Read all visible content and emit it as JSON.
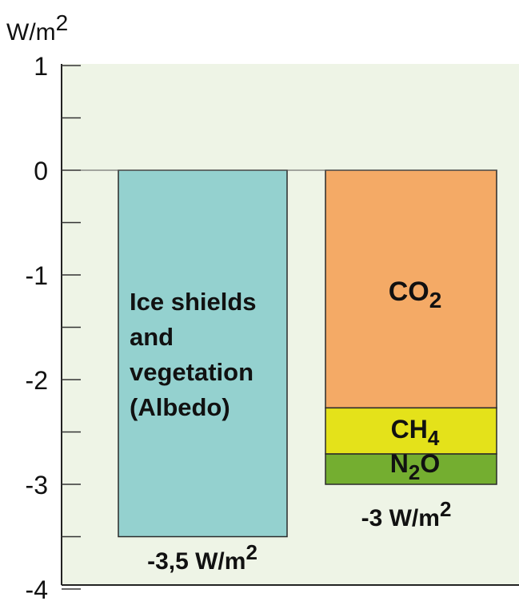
{
  "chart_data": {
    "type": "bar",
    "stacked": true,
    "ylabel": "W/m",
    "ylabel_superscript": "2",
    "ylim": [
      -4,
      1
    ],
    "yticks": [
      1,
      0,
      -1,
      -2,
      -3,
      -4
    ],
    "ytick_labels": [
      "1",
      "0",
      "-1",
      "-2",
      "-3",
      "-4"
    ],
    "grid": false,
    "background_color": "#eef4e6",
    "bars": [
      {
        "label_lines": [
          "Ice shields",
          "and",
          "vegetation",
          "(Albedo)"
        ],
        "total_label": "-3,5 W/m",
        "total_label_sup": "2",
        "segments": [
          {
            "name": "",
            "from": 0,
            "to": -3.5,
            "color": "#94d1cf"
          }
        ]
      },
      {
        "total_label": "-3 W/m",
        "total_label_sup": "2",
        "segments": [
          {
            "name": "CO",
            "sub": "2",
            "tail": "",
            "from": 0,
            "to": -2.27,
            "color": "#f4aa66"
          },
          {
            "name": "CH",
            "sub": "4",
            "tail": "",
            "from": -2.27,
            "to": -2.71,
            "color": "#e4e21a"
          },
          {
            "name": "N",
            "sub": "2",
            "tail": "O",
            "from": -2.71,
            "to": -3.0,
            "color": "#74ae30"
          }
        ]
      }
    ]
  }
}
